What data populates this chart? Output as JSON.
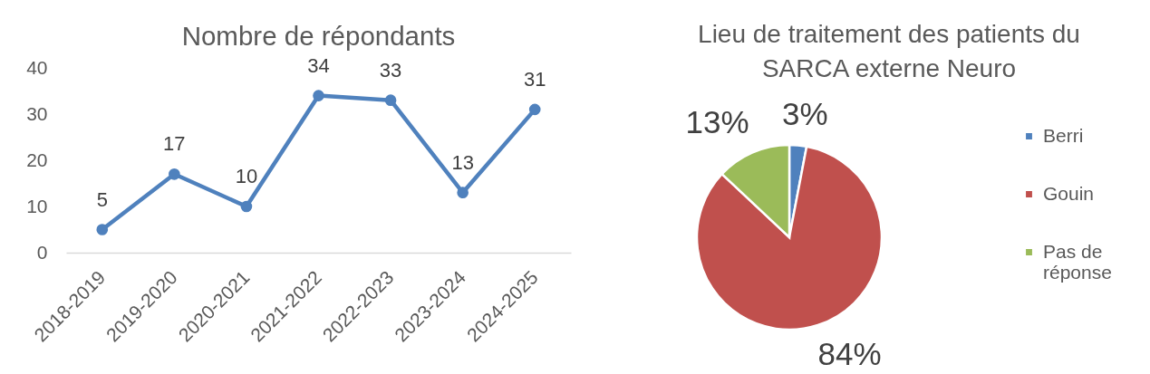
{
  "chart_data": [
    {
      "type": "line",
      "title": "Nombre de répondants",
      "categories": [
        "2018-2019",
        "2019-2020",
        "2020-2021",
        "2021-2022",
        "2022-2023",
        "2023-2024",
        "2024-2025"
      ],
      "series": [
        {
          "color": "#4f81bd",
          "values": [
            5,
            17,
            10,
            34,
            33,
            13,
            31
          ]
        }
      ],
      "ylim": [
        0,
        40
      ],
      "yticks": [
        0,
        10,
        20,
        30,
        40
      ],
      "marker": "circle",
      "data_labels": true
    },
    {
      "type": "pie",
      "title": "Lieu de traitement des patients du SARCA externe Neuro",
      "categories": [
        "Berri",
        "Gouin",
        "Pas de réponse"
      ],
      "values": [
        3,
        84,
        13
      ],
      "colors": [
        "#4f81bd",
        "#c0504d",
        "#9bbb59"
      ],
      "value_labels": [
        "3%",
        "84%",
        "13%"
      ],
      "legend": "right"
    }
  ]
}
